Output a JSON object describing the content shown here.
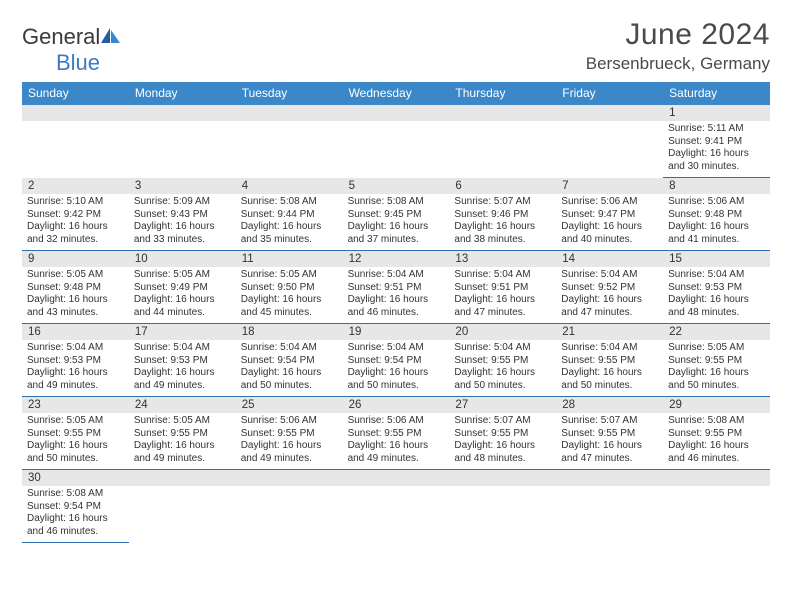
{
  "logo": {
    "text1": "General",
    "text2": "Blue",
    "icon_color": "#1f5fa8"
  },
  "title": "June 2024",
  "location": "Bersenbrueck, Germany",
  "styling": {
    "header_bg": "#3b87c8",
    "header_fg": "#ffffff",
    "daynum_bg": "#e7e7e7",
    "cell_border": "#2e6fb0",
    "text_color": "#333333",
    "title_color": "#4a4a4a",
    "font": "Arial",
    "dow_fontsize": 12,
    "cell_fontsize": 10,
    "title_fontsize": 30,
    "location_fontsize": 17
  },
  "days_of_week": [
    "Sunday",
    "Monday",
    "Tuesday",
    "Wednesday",
    "Thursday",
    "Friday",
    "Saturday"
  ],
  "weeks": [
    [
      null,
      null,
      null,
      null,
      null,
      null,
      {
        "n": "1",
        "sunrise": "5:11 AM",
        "sunset": "9:41 PM",
        "daylight": "16 hours and 30 minutes."
      }
    ],
    [
      {
        "n": "2",
        "sunrise": "5:10 AM",
        "sunset": "9:42 PM",
        "daylight": "16 hours and 32 minutes."
      },
      {
        "n": "3",
        "sunrise": "5:09 AM",
        "sunset": "9:43 PM",
        "daylight": "16 hours and 33 minutes."
      },
      {
        "n": "4",
        "sunrise": "5:08 AM",
        "sunset": "9:44 PM",
        "daylight": "16 hours and 35 minutes."
      },
      {
        "n": "5",
        "sunrise": "5:08 AM",
        "sunset": "9:45 PM",
        "daylight": "16 hours and 37 minutes."
      },
      {
        "n": "6",
        "sunrise": "5:07 AM",
        "sunset": "9:46 PM",
        "daylight": "16 hours and 38 minutes."
      },
      {
        "n": "7",
        "sunrise": "5:06 AM",
        "sunset": "9:47 PM",
        "daylight": "16 hours and 40 minutes."
      },
      {
        "n": "8",
        "sunrise": "5:06 AM",
        "sunset": "9:48 PM",
        "daylight": "16 hours and 41 minutes."
      }
    ],
    [
      {
        "n": "9",
        "sunrise": "5:05 AM",
        "sunset": "9:48 PM",
        "daylight": "16 hours and 43 minutes."
      },
      {
        "n": "10",
        "sunrise": "5:05 AM",
        "sunset": "9:49 PM",
        "daylight": "16 hours and 44 minutes."
      },
      {
        "n": "11",
        "sunrise": "5:05 AM",
        "sunset": "9:50 PM",
        "daylight": "16 hours and 45 minutes."
      },
      {
        "n": "12",
        "sunrise": "5:04 AM",
        "sunset": "9:51 PM",
        "daylight": "16 hours and 46 minutes."
      },
      {
        "n": "13",
        "sunrise": "5:04 AM",
        "sunset": "9:51 PM",
        "daylight": "16 hours and 47 minutes."
      },
      {
        "n": "14",
        "sunrise": "5:04 AM",
        "sunset": "9:52 PM",
        "daylight": "16 hours and 47 minutes."
      },
      {
        "n": "15",
        "sunrise": "5:04 AM",
        "sunset": "9:53 PM",
        "daylight": "16 hours and 48 minutes."
      }
    ],
    [
      {
        "n": "16",
        "sunrise": "5:04 AM",
        "sunset": "9:53 PM",
        "daylight": "16 hours and 49 minutes."
      },
      {
        "n": "17",
        "sunrise": "5:04 AM",
        "sunset": "9:53 PM",
        "daylight": "16 hours and 49 minutes."
      },
      {
        "n": "18",
        "sunrise": "5:04 AM",
        "sunset": "9:54 PM",
        "daylight": "16 hours and 50 minutes."
      },
      {
        "n": "19",
        "sunrise": "5:04 AM",
        "sunset": "9:54 PM",
        "daylight": "16 hours and 50 minutes."
      },
      {
        "n": "20",
        "sunrise": "5:04 AM",
        "sunset": "9:55 PM",
        "daylight": "16 hours and 50 minutes."
      },
      {
        "n": "21",
        "sunrise": "5:04 AM",
        "sunset": "9:55 PM",
        "daylight": "16 hours and 50 minutes."
      },
      {
        "n": "22",
        "sunrise": "5:05 AM",
        "sunset": "9:55 PM",
        "daylight": "16 hours and 50 minutes."
      }
    ],
    [
      {
        "n": "23",
        "sunrise": "5:05 AM",
        "sunset": "9:55 PM",
        "daylight": "16 hours and 50 minutes."
      },
      {
        "n": "24",
        "sunrise": "5:05 AM",
        "sunset": "9:55 PM",
        "daylight": "16 hours and 49 minutes."
      },
      {
        "n": "25",
        "sunrise": "5:06 AM",
        "sunset": "9:55 PM",
        "daylight": "16 hours and 49 minutes."
      },
      {
        "n": "26",
        "sunrise": "5:06 AM",
        "sunset": "9:55 PM",
        "daylight": "16 hours and 49 minutes."
      },
      {
        "n": "27",
        "sunrise": "5:07 AM",
        "sunset": "9:55 PM",
        "daylight": "16 hours and 48 minutes."
      },
      {
        "n": "28",
        "sunrise": "5:07 AM",
        "sunset": "9:55 PM",
        "daylight": "16 hours and 47 minutes."
      },
      {
        "n": "29",
        "sunrise": "5:08 AM",
        "sunset": "9:55 PM",
        "daylight": "16 hours and 46 minutes."
      }
    ],
    [
      {
        "n": "30",
        "sunrise": "5:08 AM",
        "sunset": "9:54 PM",
        "daylight": "16 hours and 46 minutes."
      },
      null,
      null,
      null,
      null,
      null,
      null
    ]
  ],
  "labels": {
    "sunrise": "Sunrise:",
    "sunset": "Sunset:",
    "daylight": "Daylight:"
  }
}
